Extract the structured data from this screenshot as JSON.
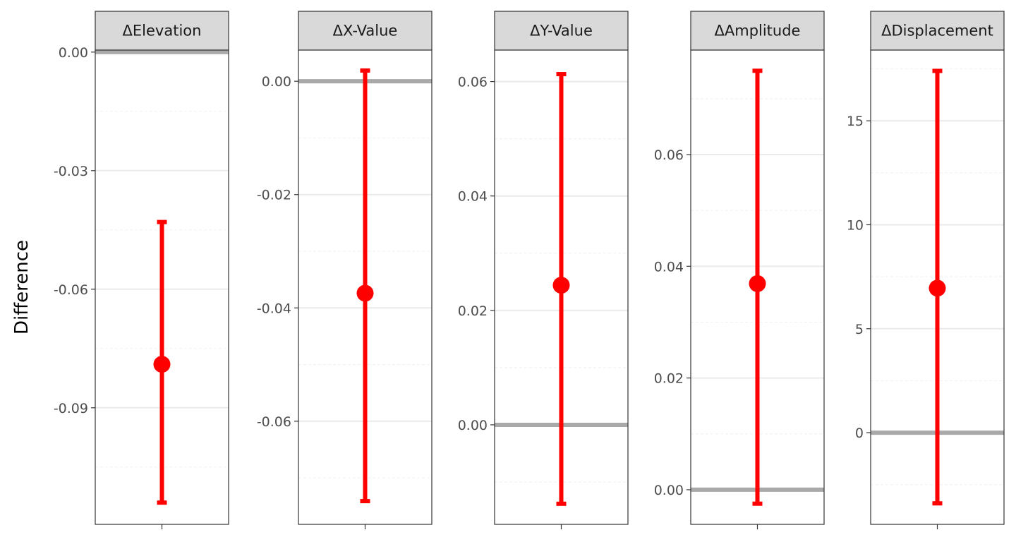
{
  "chart_data": {
    "type": "errorbar",
    "ylabel": "Difference",
    "colors": {
      "estimate": "#ff0000",
      "zero_line": "#a9a9a9",
      "panel_border": "#333333",
      "strip_fill": "#d9d9d9",
      "grid_major": "#ebebeb",
      "grid_minor": "#f2f2f2"
    },
    "panels": [
      {
        "title": "ΔElevation",
        "estimate": -0.079,
        "lower": -0.114,
        "upper": -0.043,
        "zero_line": 0,
        "ylim": [
          -0.1195,
          0.0005
        ],
        "ticks": [
          0.0,
          -0.03,
          -0.06,
          -0.09
        ],
        "tick_labels": [
          "0.00",
          "-0.03",
          "-0.06",
          "-0.09"
        ],
        "minor_ticks": [
          -0.015,
          -0.045,
          -0.075,
          -0.105
        ]
      },
      {
        "title": "ΔX-Value",
        "estimate": -0.0374,
        "lower": -0.0741,
        "upper": 0.0019,
        "zero_line": 0,
        "ylim": [
          -0.0782,
          0.0055
        ],
        "ticks": [
          0.0,
          -0.02,
          -0.04,
          -0.06
        ],
        "tick_labels": [
          "0.00",
          "-0.02",
          "-0.04",
          "-0.06"
        ],
        "minor_ticks": [
          -0.01,
          -0.03,
          -0.05,
          -0.07
        ]
      },
      {
        "title": "ΔY-Value",
        "estimate": 0.0244,
        "lower": -0.0138,
        "upper": 0.0613,
        "zero_line": 0,
        "ylim": [
          -0.0174,
          0.0655
        ],
        "ticks": [
          0.0,
          0.02,
          0.04,
          0.06
        ],
        "tick_labels": [
          "0.00",
          "0.02",
          "0.04",
          "0.06"
        ],
        "minor_ticks": [
          -0.01,
          0.01,
          0.03,
          0.05
        ]
      },
      {
        "title": "ΔAmplitude",
        "estimate": 0.0369,
        "lower": -0.0025,
        "upper": 0.075,
        "zero_line": 0,
        "ylim": [
          -0.0062,
          0.0787
        ],
        "ticks": [
          0.0,
          0.02,
          0.04,
          0.06
        ],
        "tick_labels": [
          "0.00",
          "0.02",
          "0.04",
          "0.06"
        ],
        "minor_ticks": [
          0.01,
          0.03,
          0.05,
          0.07
        ]
      },
      {
        "title": "ΔDisplacement",
        "estimate": 6.95,
        "lower": -3.4,
        "upper": 17.4,
        "zero_line": 0,
        "ylim": [
          -4.41,
          18.4
        ],
        "ticks": [
          0,
          5,
          10,
          15
        ],
        "tick_labels": [
          "0",
          "5",
          "10",
          "15"
        ],
        "minor_ticks": [
          -2.5,
          2.5,
          7.5,
          12.5,
          17.5
        ]
      }
    ]
  }
}
